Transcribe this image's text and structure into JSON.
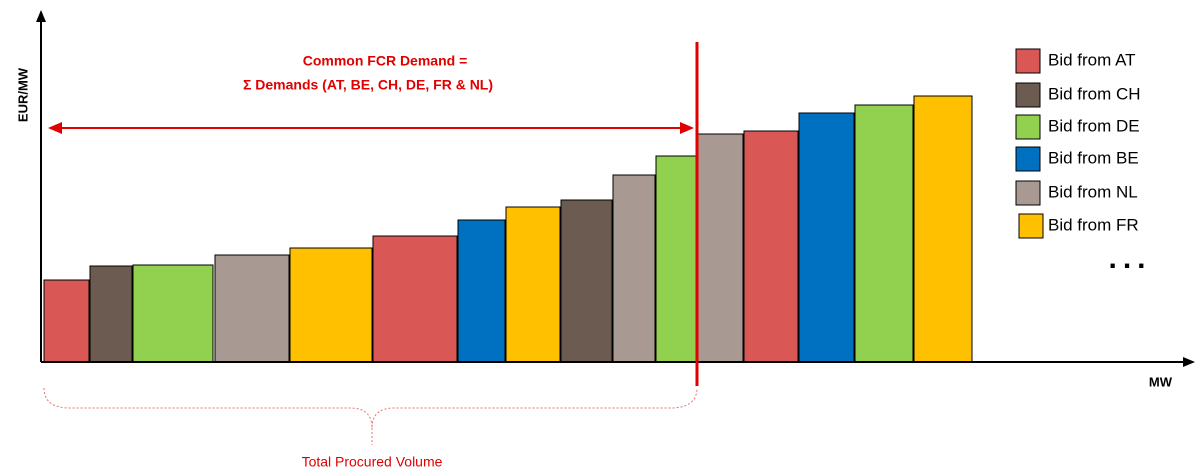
{
  "axes": {
    "y_label": "EUR/MW",
    "x_label": "MW"
  },
  "annotation": {
    "line1": "Common FCR Demand =",
    "line2": "Σ Demands (AT, BE, CH, DE, FR & NL)"
  },
  "brace_label": "Total Procured Volume",
  "legend": [
    "Bid from AT",
    "Bid from CH",
    "Bid from DE",
    "Bid from BE",
    "Bid from NL",
    "Bid from FR"
  ],
  "legend_more": "..."
}
